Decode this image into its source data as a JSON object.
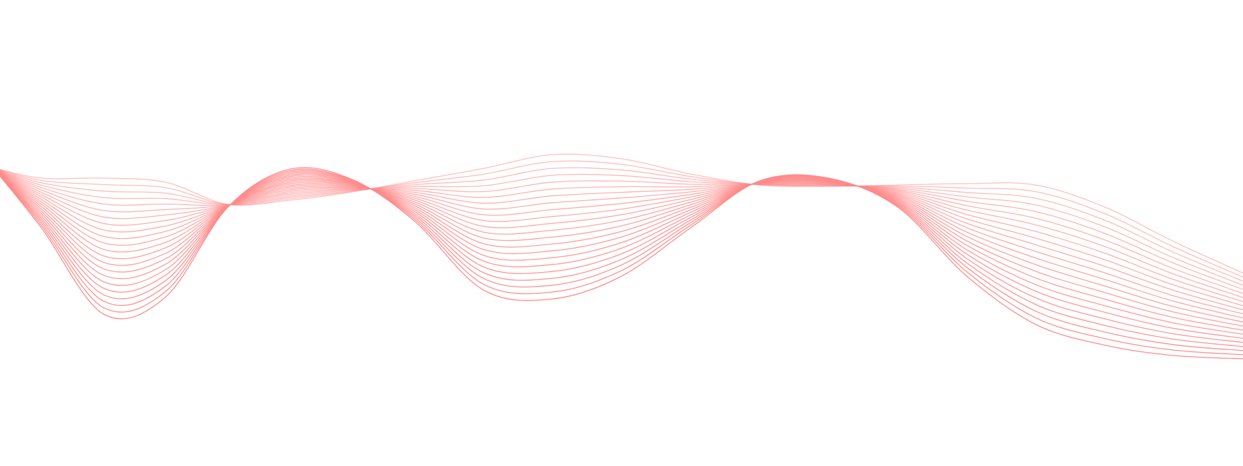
{
  "artwork": {
    "line_color": "#ff8a8a",
    "background": "#ffffff",
    "line_count": 22
  }
}
